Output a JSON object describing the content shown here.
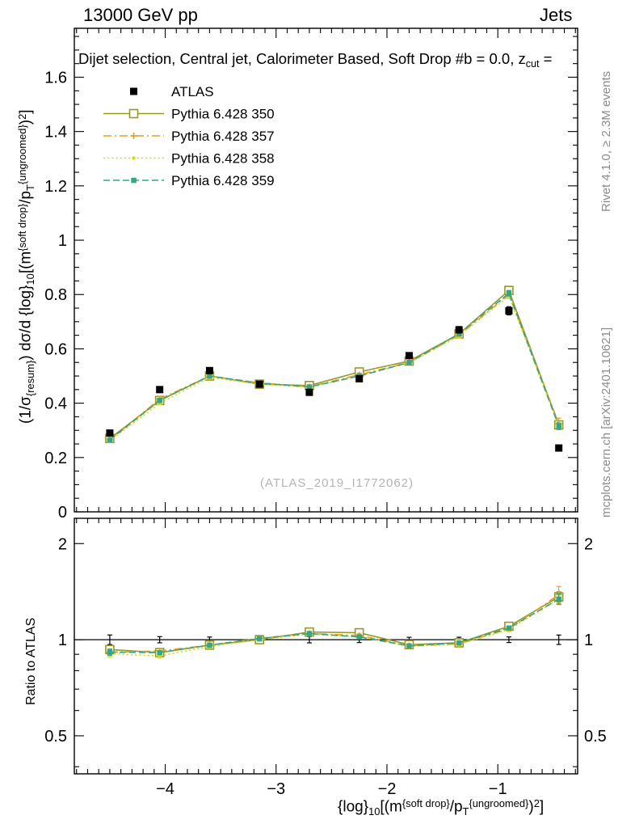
{
  "header": {
    "left": "13000 GeV pp",
    "right": "Jets"
  },
  "side_notes": {
    "top_right": "Rivet 4.1.0, ≥ 2.3M events",
    "bottom_right": "mcplots.cern.ch [arXiv:2401.10621]"
  },
  "labels": {
    "title": {
      "pre": "Dijet selection, Central jet, Calorimeter Based, Soft Drop #b = 0.0, z",
      "sub": "cut",
      "post": " ="
    },
    "watermark": "(ATLAS_2019_I1772062)",
    "ratio_ylabel": "Ratio to ATLAS",
    "ylabel": {
      "p1": "(1/σ",
      "s1": "{resum}",
      "p2": ") dσ/d {log}",
      "s2": "10",
      "p3": "[(m",
      "u3": "{soft drop}",
      "p4": "/p",
      "s4": "T",
      "u4": "{ungroomed}",
      "p5": ")",
      "u5": "2",
      "p6": "]"
    },
    "xlabel": {
      "p1": "{log}",
      "s1": "10",
      "p2": "[(m",
      "u2": "{soft drop}",
      "p3": "/p",
      "s3": "T",
      "u3": "{ungroomed}",
      "p4": ")",
      "u4": "2",
      "p5": "]"
    }
  },
  "chart_data": {
    "type": "line",
    "title": "Dijet selection, Central jet, Calorimeter Based, Soft Drop #b = 0.0, z_cut =",
    "xlabel": "{log}_10[(m^{soft drop}/p_T^{ungroomed})^2]",
    "ylabel": "(1/σ_{resum}) dσ/d {log}_10[(m^{soft drop}/p_T^{ungroomed})^2]",
    "ratio_ylabel": "Ratio to ATLAS",
    "legend_position": "top-left",
    "grid": false,
    "x": [
      -4.5,
      -4.05,
      -3.6,
      -3.15,
      -2.7,
      -2.25,
      -1.8,
      -1.35,
      -0.9,
      -0.45
    ],
    "series": [
      {
        "name": "ATLAS",
        "color": "#000000",
        "marker": "square-filled",
        "line": "none",
        "values": [
          0.29,
          0.45,
          0.52,
          0.47,
          0.44,
          0.49,
          0.575,
          0.67,
          0.74,
          0.235
        ],
        "errors": [
          0.01,
          0.01,
          0.01,
          0.01,
          0.01,
          0.01,
          0.01,
          0.012,
          0.015,
          0.008
        ]
      },
      {
        "name": "Pythia 6.428 350",
        "color": "#97972b",
        "marker": "square-open",
        "line": "solid",
        "values": [
          0.27,
          0.41,
          0.5,
          0.47,
          0.465,
          0.515,
          0.555,
          0.655,
          0.815,
          0.32
        ],
        "errors": [
          0.006,
          0.006,
          0.006,
          0.006,
          0.006,
          0.006,
          0.006,
          0.008,
          0.01,
          0.012
        ]
      },
      {
        "name": "Pythia 6.428 357",
        "color": "#e3a11c",
        "marker": "plus",
        "line": "dashdot",
        "values": [
          0.265,
          0.415,
          0.5,
          0.475,
          0.46,
          0.505,
          0.55,
          0.65,
          0.8,
          0.325
        ],
        "errors": [
          0.006,
          0.008,
          0.006,
          0.006,
          0.006,
          0.006,
          0.006,
          0.008,
          0.01,
          0.02
        ]
      },
      {
        "name": "Pythia 6.428 358",
        "color": "#d8d820",
        "marker": "dot",
        "line": "dotted",
        "values": [
          0.262,
          0.4,
          0.495,
          0.47,
          0.458,
          0.5,
          0.548,
          0.648,
          0.795,
          0.315
        ],
        "errors": [
          0.006,
          0.006,
          0.006,
          0.006,
          0.006,
          0.006,
          0.006,
          0.008,
          0.01,
          0.012
        ]
      },
      {
        "name": "Pythia 6.428 359",
        "color": "#35a585",
        "marker": "square-filled-small",
        "line": "dashed",
        "values": [
          0.265,
          0.41,
          0.5,
          0.474,
          0.46,
          0.5,
          0.55,
          0.655,
          0.805,
          0.315
        ],
        "errors": [
          0.006,
          0.006,
          0.006,
          0.006,
          0.006,
          0.006,
          0.006,
          0.008,
          0.01,
          0.012
        ]
      }
    ],
    "ratio_reference": "ATLAS",
    "xlim": [
      -4.82,
      -0.28
    ],
    "ylim": [
      0,
      1.78
    ],
    "ratio_ylim": [
      0.38,
      2.4
    ],
    "ratio_scale": "log",
    "xticks": [
      -4,
      -3,
      -2,
      -1
    ],
    "yticks": [
      0,
      0.2,
      0.4,
      0.6,
      0.8,
      1,
      1.2,
      1.4,
      1.6
    ],
    "ratio_ticks": [
      0.5,
      1,
      2
    ],
    "ratio_minor_ticks": [
      0.4,
      0.6,
      0.7,
      0.8,
      0.9
    ]
  }
}
